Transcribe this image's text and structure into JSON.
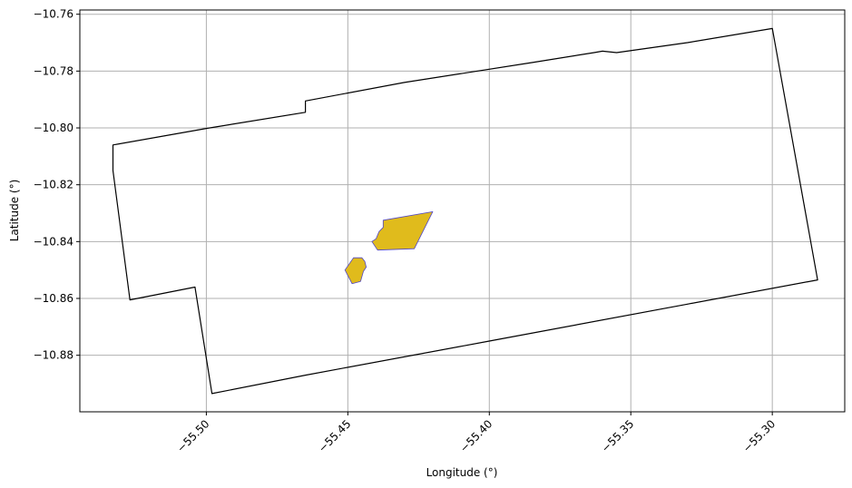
{
  "chart_data": {
    "type": "map",
    "xlabel": "Longitude (°)",
    "ylabel": "Latitude (°)",
    "xlim": [
      -55.5447,
      -55.2744
    ],
    "ylim": [
      -10.8999,
      -10.7585
    ],
    "xticks": [
      -55.5,
      -55.45,
      -55.4,
      -55.35,
      -55.3
    ],
    "xtick_labels": [
      "−55.50",
      "−55.45",
      "−55.40",
      "−55.35",
      "−55.30"
    ],
    "yticks": [
      -10.76,
      -10.78,
      -10.8,
      -10.82,
      -10.84,
      -10.86,
      -10.88
    ],
    "ytick_labels": [
      "−10.76",
      "−10.78",
      "−10.80",
      "−10.82",
      "−10.84",
      "−10.86",
      "−10.88"
    ],
    "grid": true,
    "colors": {
      "boundary": "#000000",
      "patch_fill": "#e0bb1c",
      "patch_edge": "#5046c8",
      "grid": "#b0b0b0"
    },
    "polygons": [
      {
        "role": "boundary",
        "coords": [
          [
            -55.533,
            -10.806
          ],
          [
            -55.5,
            -10.8002
          ],
          [
            -55.465,
            -10.7945
          ],
          [
            -55.465,
            -10.7905
          ],
          [
            -55.43,
            -10.784
          ],
          [
            -55.385,
            -10.777
          ],
          [
            -55.363,
            -10.7735
          ],
          [
            -55.36,
            -10.773
          ],
          [
            -55.355,
            -10.7735
          ],
          [
            -55.33,
            -10.77
          ],
          [
            -55.3,
            -10.765
          ],
          [
            -55.284,
            -10.8535
          ],
          [
            -55.33,
            -10.862
          ],
          [
            -55.4,
            -10.875
          ],
          [
            -55.465,
            -10.887
          ],
          [
            -55.498,
            -10.8935
          ],
          [
            -55.504,
            -10.856
          ],
          [
            -55.527,
            -10.8605
          ],
          [
            -55.533,
            -10.815
          ]
        ]
      },
      {
        "role": "patch",
        "coords": [
          [
            -55.4375,
            -10.8325
          ],
          [
            -55.42,
            -10.8295
          ],
          [
            -55.4265,
            -10.8425
          ],
          [
            -55.4395,
            -10.843
          ],
          [
            -55.4415,
            -10.84
          ],
          [
            -55.44,
            -10.839
          ],
          [
            -55.439,
            -10.8365
          ],
          [
            -55.4375,
            -10.835
          ]
        ]
      },
      {
        "role": "patch",
        "coords": [
          [
            -55.448,
            -10.8457
          ],
          [
            -55.445,
            -10.8457
          ],
          [
            -55.444,
            -10.847
          ],
          [
            -55.4435,
            -10.849
          ],
          [
            -55.4445,
            -10.8505
          ],
          [
            -55.4455,
            -10.854
          ],
          [
            -55.4485,
            -10.8548
          ],
          [
            -55.451,
            -10.85
          ]
        ]
      }
    ]
  }
}
